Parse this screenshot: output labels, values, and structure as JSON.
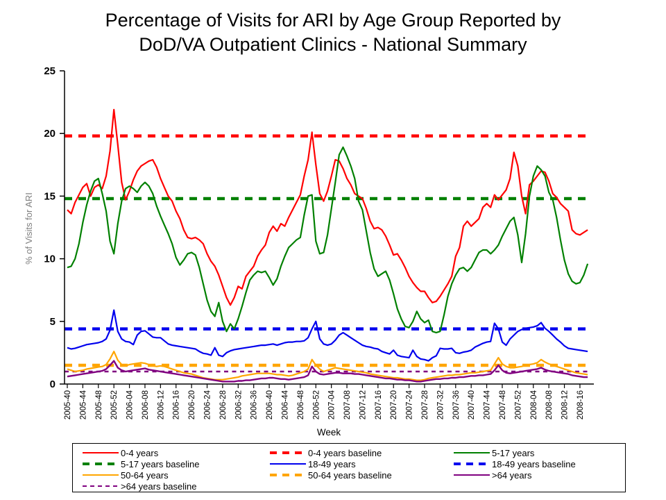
{
  "title": {
    "line1": "Percentage of Visits for ARI by Age Group Reported by",
    "line2": "DoD/VA Outpatient Clinics - National Summary"
  },
  "axes": {
    "y_label": "% of Visits for ARI",
    "x_label": "Week",
    "y_ticks": [
      0,
      5,
      10,
      15,
      20,
      25
    ],
    "y_lim": [
      0,
      25
    ],
    "x_tick_every": 4,
    "x_tick_labels": [
      "2005-40",
      "2005-44",
      "2005-48",
      "2005-52",
      "2006-04",
      "2006-08",
      "2006-12",
      "2006-16",
      "2006-20",
      "2006-24",
      "2006-28",
      "2006-32",
      "2006-36",
      "2006-40",
      "2006-44",
      "2006-48",
      "2006-52",
      "2007-04",
      "2007-08",
      "2007-12",
      "2007-16",
      "2007-20",
      "2007-24",
      "2007-28",
      "2007-32",
      "2007-36",
      "2007-40",
      "2007-44",
      "2007-48",
      "2007-52",
      "2008-04",
      "2008-08",
      "2008-12",
      "2008-16"
    ]
  },
  "chart_data": {
    "type": "line",
    "title": "Percentage of Visits for ARI by Age Group Reported by DoD/VA Outpatient Clinics - National Summary",
    "xlabel": "Week",
    "ylabel": "% of Visits for ARI",
    "ylim": [
      0,
      25
    ],
    "grid": false,
    "legend_position": "bottom",
    "x": [
      "2005-40",
      "2005-41",
      "2005-42",
      "2005-43",
      "2005-44",
      "2005-45",
      "2005-46",
      "2005-47",
      "2005-48",
      "2005-49",
      "2005-50",
      "2005-51",
      "2005-52",
      "2006-01",
      "2006-02",
      "2006-03",
      "2006-04",
      "2006-05",
      "2006-06",
      "2006-07",
      "2006-08",
      "2006-09",
      "2006-10",
      "2006-11",
      "2006-12",
      "2006-13",
      "2006-14",
      "2006-15",
      "2006-16",
      "2006-17",
      "2006-18",
      "2006-19",
      "2006-20",
      "2006-21",
      "2006-22",
      "2006-23",
      "2006-24",
      "2006-25",
      "2006-26",
      "2006-27",
      "2006-28",
      "2006-29",
      "2006-30",
      "2006-31",
      "2006-32",
      "2006-33",
      "2006-34",
      "2006-35",
      "2006-36",
      "2006-37",
      "2006-38",
      "2006-39",
      "2006-40",
      "2006-41",
      "2006-42",
      "2006-43",
      "2006-44",
      "2006-45",
      "2006-46",
      "2006-47",
      "2006-48",
      "2006-49",
      "2006-50",
      "2006-51",
      "2006-52",
      "2007-01",
      "2007-02",
      "2007-03",
      "2007-04",
      "2007-05",
      "2007-06",
      "2007-07",
      "2007-08",
      "2007-09",
      "2007-10",
      "2007-11",
      "2007-12",
      "2007-13",
      "2007-14",
      "2007-15",
      "2007-16",
      "2007-17",
      "2007-18",
      "2007-19",
      "2007-20",
      "2007-21",
      "2007-22",
      "2007-23",
      "2007-24",
      "2007-25",
      "2007-26",
      "2007-27",
      "2007-28",
      "2007-29",
      "2007-30",
      "2007-31",
      "2007-32",
      "2007-33",
      "2007-34",
      "2007-35",
      "2007-36",
      "2007-37",
      "2007-38",
      "2007-39",
      "2007-40",
      "2007-41",
      "2007-42",
      "2007-43",
      "2007-44",
      "2007-45",
      "2007-46",
      "2007-47",
      "2007-48",
      "2007-49",
      "2007-50",
      "2007-51",
      "2007-52",
      "2008-01",
      "2008-02",
      "2008-03",
      "2008-04",
      "2008-05",
      "2008-06",
      "2008-07",
      "2008-08",
      "2008-09",
      "2008-10",
      "2008-11",
      "2008-12",
      "2008-13",
      "2008-14",
      "2008-15",
      "2008-16",
      "2008-17",
      "2008-18"
    ],
    "series": [
      {
        "name": "0-4 years",
        "color": "#ff0000",
        "style": "solid",
        "values": [
          13.9,
          13.6,
          14.5,
          15.1,
          15.7,
          16.0,
          15.0,
          15.7,
          15.9,
          15.6,
          16.6,
          18.6,
          21.9,
          19.1,
          16.1,
          14.7,
          15.4,
          16.3,
          17.0,
          17.4,
          17.6,
          17.8,
          17.9,
          17.3,
          16.4,
          15.7,
          15.0,
          14.6,
          13.8,
          13.2,
          12.3,
          11.7,
          11.6,
          11.7,
          11.5,
          11.2,
          10.4,
          9.8,
          9.4,
          8.7,
          7.8,
          6.9,
          6.3,
          6.9,
          7.8,
          7.6,
          8.6,
          9.0,
          9.4,
          10.2,
          10.7,
          11.1,
          12.1,
          12.6,
          12.2,
          12.8,
          12.6,
          13.3,
          13.9,
          14.5,
          15.1,
          16.6,
          17.9,
          20.1,
          17.5,
          15.2,
          14.6,
          15.4,
          16.6,
          17.9,
          17.8,
          17.2,
          16.4,
          15.9,
          15.2,
          15.0,
          14.8,
          14.0,
          13.0,
          12.4,
          12.5,
          12.3,
          11.8,
          11.1,
          10.3,
          10.4,
          9.9,
          9.3,
          8.6,
          8.1,
          7.7,
          7.4,
          7.4,
          6.9,
          6.5,
          6.6,
          7.0,
          7.5,
          8.0,
          8.6,
          10.2,
          10.9,
          12.6,
          13.0,
          12.6,
          12.9,
          13.2,
          14.1,
          14.4,
          14.1,
          15.1,
          14.7,
          15.1,
          15.5,
          16.4,
          18.5,
          17.4,
          15.0,
          13.6,
          15.9,
          16.2,
          16.6,
          17.0,
          16.9,
          16.2,
          15.2,
          14.9,
          14.4,
          14.1,
          13.8,
          12.3,
          12.0,
          11.9,
          12.1,
          12.3
        ]
      },
      {
        "name": "0-4 years baseline",
        "color": "#ff0000",
        "style": "dashed",
        "baseline_value": 19.8
      },
      {
        "name": "5-17 years",
        "color": "#008000",
        "style": "solid",
        "values": [
          9.3,
          9.4,
          10.0,
          11.2,
          12.9,
          14.3,
          15.4,
          16.2,
          16.4,
          15.2,
          13.8,
          11.4,
          10.4,
          12.8,
          14.6,
          15.6,
          15.8,
          15.6,
          15.3,
          15.8,
          16.1,
          15.8,
          15.2,
          14.2,
          13.4,
          12.7,
          12.0,
          11.2,
          10.1,
          9.5,
          9.9,
          10.4,
          10.5,
          10.3,
          9.3,
          8.0,
          6.7,
          5.8,
          5.4,
          6.5,
          5.0,
          4.2,
          4.8,
          4.4,
          5.2,
          6.2,
          7.3,
          8.3,
          8.7,
          9.0,
          8.9,
          9.0,
          8.5,
          7.9,
          8.4,
          9.4,
          10.2,
          10.9,
          11.2,
          11.5,
          11.7,
          13.5,
          15.0,
          15.1,
          11.4,
          10.4,
          10.5,
          11.9,
          14.0,
          16.1,
          18.3,
          18.9,
          18.2,
          17.4,
          16.4,
          14.6,
          13.9,
          12.2,
          10.5,
          9.2,
          8.6,
          8.8,
          9.0,
          8.3,
          7.2,
          6.0,
          5.2,
          4.6,
          4.5,
          5.0,
          5.8,
          5.2,
          4.9,
          5.1,
          4.2,
          4.1,
          4.2,
          5.5,
          7.0,
          8.0,
          8.7,
          9.2,
          9.3,
          9.0,
          9.3,
          9.9,
          10.5,
          10.7,
          10.7,
          10.4,
          10.7,
          11.1,
          11.8,
          12.4,
          13.0,
          13.3,
          11.9,
          9.7,
          12.0,
          15.0,
          16.6,
          17.4,
          17.1,
          16.6,
          15.3,
          14.7,
          13.3,
          11.5,
          9.9,
          8.8,
          8.2,
          8.0,
          8.1,
          8.7,
          9.6
        ]
      },
      {
        "name": "5-17 years baseline",
        "color": "#008000",
        "style": "dashed",
        "baseline_value": 14.8
      },
      {
        "name": "18-49 years",
        "color": "#0000ee",
        "style": "solid",
        "values": [
          2.9,
          2.8,
          2.85,
          2.95,
          3.05,
          3.15,
          3.2,
          3.25,
          3.3,
          3.4,
          3.6,
          4.3,
          5.9,
          4.2,
          3.6,
          3.4,
          3.35,
          3.15,
          3.9,
          4.2,
          4.25,
          4.0,
          3.75,
          3.7,
          3.7,
          3.45,
          3.2,
          3.1,
          3.05,
          3.0,
          2.95,
          2.9,
          2.85,
          2.8,
          2.6,
          2.45,
          2.4,
          2.3,
          2.9,
          2.3,
          2.2,
          2.5,
          2.65,
          2.75,
          2.8,
          2.85,
          2.9,
          2.95,
          3.0,
          3.05,
          3.1,
          3.1,
          3.15,
          3.2,
          3.1,
          3.2,
          3.3,
          3.35,
          3.35,
          3.4,
          3.4,
          3.45,
          3.7,
          4.4,
          5.0,
          3.6,
          3.2,
          3.1,
          3.2,
          3.5,
          3.9,
          4.1,
          3.9,
          3.7,
          3.5,
          3.3,
          3.1,
          3.0,
          2.95,
          2.85,
          2.8,
          2.6,
          2.5,
          2.4,
          2.7,
          2.3,
          2.2,
          2.15,
          2.1,
          2.7,
          2.2,
          2.0,
          1.95,
          1.85,
          2.1,
          2.25,
          2.85,
          2.8,
          2.8,
          2.85,
          2.5,
          2.45,
          2.55,
          2.6,
          2.7,
          2.95,
          3.1,
          3.25,
          3.35,
          3.4,
          4.85,
          4.4,
          3.35,
          3.1,
          3.6,
          3.9,
          4.2,
          4.35,
          4.45,
          4.5,
          4.55,
          4.65,
          4.9,
          4.45,
          4.2,
          3.9,
          3.6,
          3.35,
          3.05,
          2.85,
          2.8,
          2.75,
          2.7,
          2.65,
          2.6
        ]
      },
      {
        "name": "18-49 years baseline",
        "color": "#0000ee",
        "style": "dashed",
        "baseline_value": 4.4
      },
      {
        "name": "50-64 years",
        "color": "#ffa500",
        "style": "solid",
        "values": [
          1.2,
          1.1,
          1.0,
          1.05,
          1.1,
          1.2,
          1.25,
          1.3,
          1.35,
          1.4,
          1.55,
          2.0,
          2.6,
          1.9,
          1.55,
          1.45,
          1.55,
          1.6,
          1.65,
          1.7,
          1.65,
          1.55,
          1.45,
          1.4,
          1.45,
          1.4,
          1.3,
          1.2,
          1.1,
          1.0,
          0.9,
          0.85,
          0.8,
          0.7,
          0.6,
          0.5,
          0.45,
          0.4,
          0.35,
          0.35,
          0.35,
          0.4,
          0.45,
          0.5,
          0.55,
          0.65,
          0.7,
          0.75,
          0.8,
          0.85,
          0.85,
          0.85,
          0.85,
          0.8,
          0.75,
          0.75,
          0.7,
          0.65,
          0.7,
          0.8,
          0.9,
          1.0,
          1.2,
          1.95,
          1.5,
          1.2,
          1.0,
          1.1,
          1.2,
          1.3,
          1.25,
          1.2,
          1.15,
          1.1,
          1.05,
          1.0,
          0.95,
          0.9,
          0.8,
          0.75,
          0.7,
          0.65,
          0.6,
          0.55,
          0.5,
          0.5,
          0.45,
          0.4,
          0.4,
          0.35,
          0.3,
          0.3,
          0.35,
          0.45,
          0.5,
          0.55,
          0.6,
          0.65,
          0.7,
          0.7,
          0.75,
          0.75,
          0.8,
          0.85,
          0.9,
          0.9,
          0.95,
          1.0,
          1.05,
          1.1,
          1.6,
          2.1,
          1.6,
          1.4,
          1.3,
          1.3,
          1.35,
          1.4,
          1.5,
          1.55,
          1.6,
          1.7,
          1.95,
          1.75,
          1.6,
          1.5,
          1.4,
          1.3,
          1.2,
          1.1,
          1.0,
          0.9,
          0.85,
          0.8,
          0.75
        ]
      },
      {
        "name": "50-64 years baseline",
        "color": "#ffa500",
        "style": "dashed",
        "baseline_value": 1.5
      },
      {
        "name": ">64 years",
        "color": "#800080",
        "style": "solid",
        "values": [
          0.6,
          0.65,
          0.7,
          0.75,
          0.8,
          0.85,
          0.9,
          0.95,
          1.0,
          1.05,
          1.2,
          1.5,
          1.85,
          1.3,
          1.1,
          1.0,
          1.05,
          1.1,
          1.15,
          1.2,
          1.25,
          1.15,
          1.1,
          1.05,
          1.0,
          0.95,
          0.9,
          0.85,
          0.8,
          0.75,
          0.7,
          0.65,
          0.6,
          0.55,
          0.5,
          0.45,
          0.4,
          0.35,
          0.3,
          0.25,
          0.2,
          0.2,
          0.2,
          0.2,
          0.25,
          0.25,
          0.3,
          0.3,
          0.35,
          0.4,
          0.45,
          0.45,
          0.5,
          0.5,
          0.45,
          0.4,
          0.4,
          0.35,
          0.4,
          0.45,
          0.5,
          0.55,
          0.7,
          1.4,
          1.0,
          0.8,
          0.75,
          0.8,
          0.85,
          0.9,
          0.9,
          0.85,
          0.85,
          0.85,
          0.8,
          0.8,
          0.75,
          0.7,
          0.65,
          0.6,
          0.55,
          0.5,
          0.45,
          0.45,
          0.4,
          0.35,
          0.35,
          0.3,
          0.3,
          0.25,
          0.2,
          0.2,
          0.25,
          0.3,
          0.35,
          0.4,
          0.4,
          0.45,
          0.45,
          0.5,
          0.5,
          0.55,
          0.55,
          0.6,
          0.65,
          0.65,
          0.7,
          0.7,
          0.75,
          0.8,
          1.1,
          1.5,
          1.1,
          0.9,
          0.85,
          0.9,
          0.95,
          1.0,
          1.05,
          1.1,
          1.15,
          1.2,
          1.3,
          1.15,
          1.05,
          1.0,
          0.95,
          0.9,
          0.85,
          0.8,
          0.7,
          0.65,
          0.6,
          0.55,
          0.55
        ]
      },
      {
        "name": ">64 years baseline",
        "color": "#800080",
        "style": "dashed",
        "baseline_value": 1.0,
        "thin": true
      }
    ]
  },
  "colors": {
    "age_0_4": "#ff0000",
    "age_5_17": "#008000",
    "age_18_49": "#0000ee",
    "age_50_64": "#ffa500",
    "age_over_64": "#800080",
    "axis": "#000000",
    "y_label_text": "#7f7f7f"
  }
}
